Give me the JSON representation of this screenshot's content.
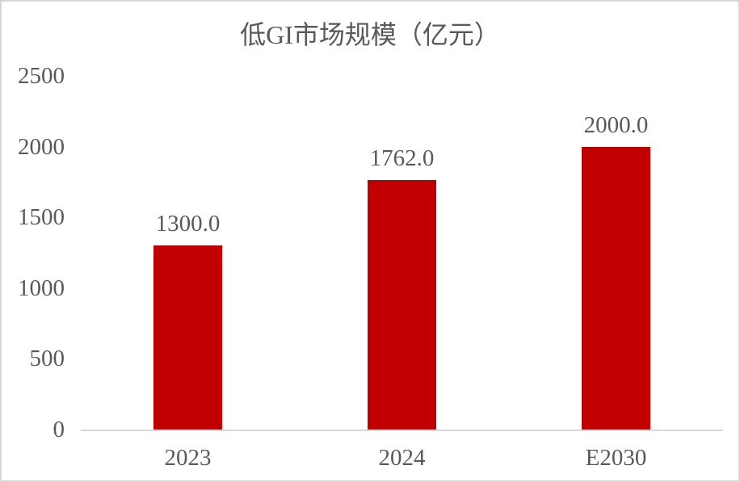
{
  "chart_data": {
    "type": "bar",
    "title": "低GI市场规模（亿元）",
    "categories": [
      "2023",
      "2024",
      "E2030"
    ],
    "values": [
      1300,
      1762,
      2000
    ],
    "value_labels": [
      "1300.0",
      "1762.0",
      "2000.0"
    ],
    "yticks": [
      0,
      500,
      1000,
      1500,
      2000,
      2500
    ],
    "ylim": [
      0,
      2500
    ],
    "xlabel": "",
    "ylabel": "",
    "legend": "none",
    "grid": "off",
    "bar_color": "#C00000",
    "text_color": "#595959",
    "axis_line_color": "#D9D9D9",
    "background_color": "#FFFFFF",
    "frame_border_color": "#D6D6D6"
  }
}
